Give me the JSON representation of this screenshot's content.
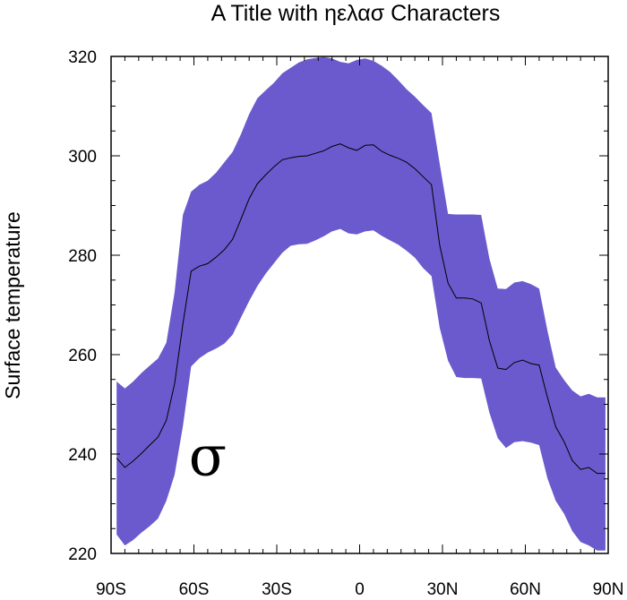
{
  "chart_data": {
    "type": "area",
    "title": "A Title with ηελασ Characters",
    "xlabel": "",
    "ylabel": "Surface temperature",
    "xlim": [
      -90,
      90
    ],
    "ylim": [
      220,
      320
    ],
    "xticks": [
      -90,
      -60,
      -30,
      0,
      30,
      60,
      90
    ],
    "xtick_labels": [
      "90S",
      "60S",
      "30S",
      "0",
      "30N",
      "60N",
      "90N"
    ],
    "yticks": [
      220,
      240,
      260,
      280,
      300,
      320
    ],
    "ytick_labels": [
      "220",
      "240",
      "260",
      "280",
      "300",
      "320"
    ],
    "grid": false,
    "fill_color": "#6a5acd",
    "line_color": "#000000",
    "annotation": {
      "text": "σ",
      "x": -55,
      "y": 239
    },
    "x": [
      -88,
      -85,
      -82,
      -79,
      -76,
      -73,
      -70,
      -67,
      -64,
      -61,
      -58,
      -55,
      -52,
      -49,
      -46,
      -43,
      -40,
      -37,
      -34,
      -31,
      -28,
      -25,
      -22,
      -19,
      -16,
      -13,
      -10,
      -7,
      -4,
      -1,
      2,
      5,
      8,
      11,
      14,
      17,
      20,
      23,
      26,
      29,
      32,
      35,
      38,
      41,
      44,
      47,
      50,
      53,
      56,
      59,
      62,
      65,
      68,
      71,
      74,
      77,
      80,
      83,
      86,
      89
    ],
    "mean": [
      239.2,
      237.3,
      238.6,
      240.1,
      241.8,
      243.4,
      246.8,
      254.1,
      266.2,
      276.8,
      277.8,
      278.3,
      279.6,
      281.1,
      283.2,
      287.2,
      291.4,
      294.4,
      296.2,
      297.8,
      299.2,
      299.6,
      299.9,
      300.0,
      300.5,
      301.0,
      301.9,
      302.4,
      301.6,
      301.1,
      302.1,
      302.2,
      300.9,
      300.1,
      299.5,
      298.7,
      297.4,
      295.8,
      294.2,
      282.0,
      274.4,
      271.4,
      271.4,
      271.2,
      270.4,
      262.8,
      257.3,
      257.0,
      258.4,
      258.9,
      258.2,
      257.9,
      251.4,
      245.5,
      242.5,
      238.7,
      236.9,
      237.3,
      236.1,
      236.1
    ],
    "upper": [
      254.6,
      253.2,
      254.6,
      256.3,
      257.8,
      259.2,
      262.4,
      272.5,
      288.1,
      292.8,
      294.2,
      295.0,
      296.6,
      298.7,
      300.8,
      304.3,
      308.4,
      311.6,
      313.2,
      314.7,
      316.6,
      317.7,
      318.8,
      319.4,
      319.7,
      319.9,
      319.6,
      318.9,
      318.6,
      319.3,
      319.6,
      319.1,
      318.1,
      316.9,
      315.2,
      313.4,
      311.9,
      310.2,
      308.6,
      298.4,
      288.3,
      288.2,
      288.2,
      288.2,
      288.1,
      279.3,
      273.3,
      273.2,
      274.5,
      274.8,
      274.2,
      273.3,
      264.8,
      257.4,
      254.9,
      252.8,
      251.6,
      252.1,
      251.4,
      251.4
    ],
    "lower": [
      223.8,
      221.6,
      222.7,
      224.2,
      225.5,
      227.0,
      230.6,
      235.8,
      245.6,
      257.6,
      259.3,
      260.4,
      261.2,
      262.2,
      264.0,
      267.4,
      270.8,
      273.8,
      276.3,
      278.4,
      280.5,
      281.9,
      282.2,
      282.3,
      283.0,
      283.8,
      284.8,
      285.3,
      284.4,
      284.2,
      284.8,
      285.0,
      283.9,
      283.0,
      282.1,
      280.9,
      279.5,
      277.4,
      275.8,
      265.4,
      258.8,
      255.5,
      255.3,
      255.3,
      255.2,
      248.3,
      243.2,
      241.2,
      242.4,
      242.6,
      242.3,
      241.8,
      235.1,
      230.6,
      228.0,
      224.5,
      222.3,
      221.6,
      220.6,
      220.6
    ]
  }
}
